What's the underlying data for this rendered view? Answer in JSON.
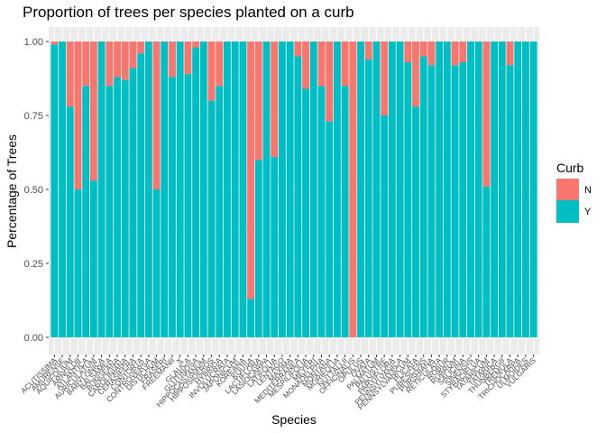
{
  "chart_data": {
    "type": "bar",
    "stacked": true,
    "title": "Proportion of trees per species planted on a curb",
    "xlabel": "Species",
    "ylabel": "Percentage of Trees",
    "ylim": [
      0,
      1
    ],
    "yticks": [
      "0.00",
      "0.25",
      "0.50",
      "0.75",
      "1.00"
    ],
    "grid": true,
    "legend_position": "right",
    "legend_title": "Curb",
    "categories": [
      "ACUTISSIMA",
      "AMURENSE",
      "AQUIFOLIUM",
      "ARNOLDII",
      "ATLANTICA",
      "AURICULATUM",
      "BABYLONICA",
      "BALSAMEA",
      "BUNGEANA",
      "CAROLINIANA",
      "CERASIFERA",
      "CONTORTA",
      "CONTROVERSA",
      "DISTICHUM",
      "FRASERI",
      "FREEMANII",
      "X",
      "GLAUCA",
      "GLUTINOSA",
      "HIPPOCASTANUM",
      "HIPPOSIDEROS",
      "HYBRIDA",
      "INVOLUCRATA",
      "JAPONICUM",
      "KOREANA",
      "KOUSA",
      "LACTIFLORA",
      "LASIOCARPA",
      "LATIFOLIA",
      "LENTAGO",
      "MAXIMA",
      "MEDITERRANEA",
      "MESPILIFOLIA",
      "MEYERI",
      "MONADELPHA",
      "MONTANA",
      "MORIFOLIA",
      "NUTTALLII",
      "OFFICINALIS",
      "OPULUS",
      "OVATA",
      "PALMATUM",
      "PALUSTRE",
      "PARVIFLORA",
      "PENNSYLVANICA",
      "PENNSYLVANICUM",
      "PLICATA",
      "PUBESCENS",
      "PURSHIANA",
      "RETICULATA",
      "ROBUR",
      "RUBRUM",
      "SALICINA",
      "SINENSIS",
      "STYRACIFLUA",
      "TATARICUM",
      "TATARICA",
      "THUNBERGII",
      "TREMULA",
      "TRICHOCARPA",
      "ULMOIDES",
      "VULGARIS"
    ],
    "series": [
      {
        "name": "N",
        "color": "#F8766D",
        "values": [
          0.01,
          0.0,
          0.22,
          0.5,
          0.15,
          0.47,
          0.0,
          0.15,
          0.12,
          0.13,
          0.09,
          0.04,
          0.0,
          0.5,
          0.0,
          0.12,
          0.0,
          0.11,
          0.02,
          0.0,
          0.2,
          0.15,
          0.0,
          0.0,
          0.0,
          0.87,
          0.4,
          0.0,
          0.39,
          0.0,
          0.0,
          0.05,
          0.16,
          0.0,
          0.15,
          0.27,
          0.0,
          0.15,
          1.0,
          0.0,
          0.06,
          0.0,
          0.25,
          0.0,
          0.0,
          0.07,
          0.22,
          0.05,
          0.08,
          0.0,
          0.0,
          0.08,
          0.07,
          0.0,
          0.0,
          0.49,
          0.0,
          0.0,
          0.08,
          0.0,
          0.0,
          0.0
        ]
      },
      {
        "name": "Y",
        "color": "#00BFC4",
        "values": [
          0.99,
          1.0,
          0.78,
          0.5,
          0.85,
          0.53,
          1.0,
          0.85,
          0.88,
          0.87,
          0.91,
          0.96,
          1.0,
          0.5,
          1.0,
          0.88,
          1.0,
          0.89,
          0.98,
          1.0,
          0.8,
          0.85,
          1.0,
          1.0,
          1.0,
          0.13,
          0.6,
          1.0,
          0.61,
          1.0,
          1.0,
          0.95,
          0.84,
          1.0,
          0.85,
          0.73,
          1.0,
          0.85,
          0.0,
          1.0,
          0.94,
          1.0,
          0.75,
          1.0,
          1.0,
          0.93,
          0.78,
          0.95,
          0.92,
          1.0,
          1.0,
          0.92,
          0.93,
          1.0,
          1.0,
          0.51,
          1.0,
          1.0,
          0.92,
          1.0,
          1.0,
          1.0
        ]
      }
    ]
  }
}
